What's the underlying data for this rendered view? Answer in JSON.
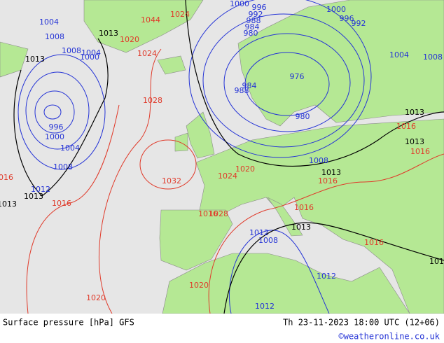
{
  "map": {
    "isobar_labels": [
      "1004",
      "1008",
      "1008",
      "1004",
      "1000",
      "996",
      "1000",
      "1004",
      "1008",
      "1012",
      "1000",
      "996",
      "992",
      "988",
      "984",
      "980",
      "984",
      "988",
      "976",
      "980",
      "1000",
      "996",
      "992",
      "1004",
      "1008",
      "1008",
      "1012",
      "1008",
      "1012",
      "1012",
      "1013",
      "1013",
      "1013",
      "1013",
      "1013",
      "1013",
      "1013",
      "1013",
      "1013",
      "1024",
      "1044",
      "1020",
      "1024",
      "1028",
      "1032",
      "1016",
      "1016",
      "1024",
      "1020",
      "1016",
      "1016",
      "1028",
      "1016",
      "1016",
      "1020",
      "1020",
      "1016",
      "1016"
    ],
    "footer": {
      "product": "Surface pressure [hPa] GFS",
      "time": "Th 23-11-2023 18:00 UTC (12+06)",
      "credit": "©weatheronline.co.uk"
    }
  }
}
